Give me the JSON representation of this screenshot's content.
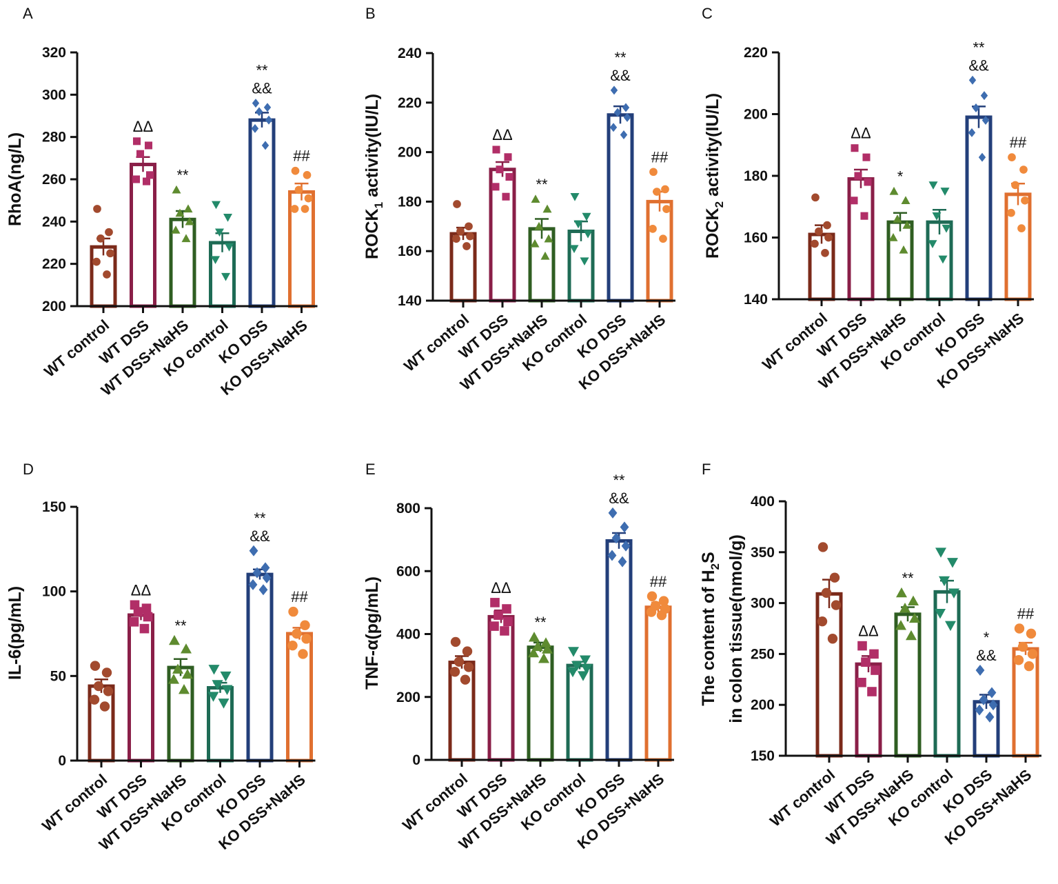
{
  "figure": {
    "categories": [
      "WT control",
      "WT DSS",
      "WT DSS+NaHS",
      "KO control",
      "KO DSS",
      "KO DSS+NaHS"
    ],
    "colors": [
      "#7B2A1A",
      "#8A1F48",
      "#2F5E22",
      "#1E6B55",
      "#233F7A",
      "#E07030"
    ],
    "point_colors": [
      "#A24A2E",
      "#B12E67",
      "#5E8B2F",
      "#238A6A",
      "#3E6DB0",
      "#F08A3C"
    ],
    "markers": [
      "circle",
      "square",
      "triangle",
      "triangle-down",
      "diamond",
      "circle"
    ]
  },
  "chart_data": [
    {
      "panel": "A",
      "type": "bar",
      "ylabel": "RhoA(ng/L)",
      "ylim": [
        200,
        320
      ],
      "yticks": [
        200,
        220,
        240,
        260,
        280,
        300,
        320
      ],
      "categories": [
        "WT control",
        "WT DSS",
        "WT DSS+NaHS",
        "KO control",
        "KO DSS",
        "KO DSS+NaHS"
      ],
      "values": [
        228,
        267,
        241,
        230,
        288,
        254
      ],
      "sem": [
        4,
        3.5,
        4,
        4.5,
        3.5,
        4
      ],
      "points": [
        [
          246,
          235,
          232,
          225,
          221,
          215
        ],
        [
          278,
          276,
          272,
          262,
          260,
          259
        ],
        [
          255,
          246,
          244,
          240,
          236,
          232
        ],
        [
          248,
          242,
          235,
          228,
          222,
          214
        ],
        [
          296,
          294,
          292,
          288,
          284,
          276
        ],
        [
          264,
          262,
          255,
          251,
          246,
          246
        ]
      ],
      "annotations": [
        "",
        "ΔΔ",
        "**",
        "",
        "**\n&&",
        "##"
      ]
    },
    {
      "panel": "B",
      "type": "bar",
      "ylabel_main": "ROCK",
      "ylabel_sub": "1",
      "ylabel_rest": " activity(IU/L)",
      "ylim": [
        140,
        240
      ],
      "yticks": [
        140,
        160,
        180,
        200,
        220,
        240
      ],
      "categories": [
        "WT control",
        "WT DSS",
        "WT DSS+NaHS",
        "KO control",
        "KO DSS",
        "KO DSS+NaHS"
      ],
      "values": [
        167,
        193,
        169,
        168,
        215,
        180
      ],
      "sem": [
        2.5,
        3,
        4,
        4,
        3.5,
        4
      ],
      "points": [
        [
          179,
          170,
          168,
          166,
          165,
          162
        ],
        [
          201,
          198,
          193,
          190,
          186,
          182
        ],
        [
          181,
          177,
          170,
          165,
          163,
          158
        ],
        [
          182,
          174,
          171,
          167,
          161,
          156
        ],
        [
          225,
          218,
          216,
          214,
          210,
          207
        ],
        [
          192,
          185,
          184,
          177,
          169,
          165
        ]
      ],
      "annotations": [
        "",
        "ΔΔ",
        "**",
        "",
        "**\n&&",
        "##"
      ]
    },
    {
      "panel": "C",
      "type": "bar",
      "ylabel_main": "ROCK",
      "ylabel_sub": "2",
      "ylabel_rest": " activity(IU/L)",
      "ylim": [
        140,
        220
      ],
      "yticks": [
        140,
        160,
        180,
        200,
        220
      ],
      "categories": [
        "WT control",
        "WT DSS",
        "WT DSS+NaHS",
        "KO control",
        "KO DSS",
        "KO DSS+NaHS"
      ],
      "values": [
        161,
        179,
        165,
        165,
        199,
        174
      ],
      "sem": [
        3,
        3,
        3,
        4,
        3.5,
        3.5
      ],
      "points": [
        [
          173,
          164,
          162,
          160,
          158,
          155
        ],
        [
          189,
          186,
          180,
          178,
          172,
          167
        ],
        [
          175,
          172,
          166,
          164,
          160,
          156
        ],
        [
          177,
          175,
          167,
          163,
          158,
          153
        ],
        [
          211,
          206,
          202,
          198,
          194,
          186
        ],
        [
          186,
          182,
          177,
          172,
          168,
          163
        ]
      ],
      "annotations": [
        "",
        "ΔΔ",
        "*",
        "",
        "**\n&&",
        "##"
      ]
    },
    {
      "panel": "D",
      "type": "bar",
      "ylabel": "IL-6(pg/mL)",
      "ylim": [
        0,
        150
      ],
      "yticks": [
        0,
        50,
        100,
        150
      ],
      "categories": [
        "WT control",
        "WT DSS",
        "WT DSS+NaHS",
        "KO control",
        "KO DSS",
        "KO DSS+NaHS"
      ],
      "values": [
        44,
        86,
        55,
        43,
        110,
        75
      ],
      "sem": [
        4,
        3,
        5,
        3,
        3,
        3.5
      ],
      "points": [
        [
          56,
          52,
          44,
          41,
          36,
          32
        ],
        [
          92,
          90,
          88,
          85,
          82,
          78
        ],
        [
          71,
          66,
          54,
          51,
          48,
          42
        ],
        [
          54,
          50,
          45,
          42,
          38,
          34
        ],
        [
          124,
          114,
          111,
          108,
          104,
          101
        ],
        [
          88,
          80,
          75,
          72,
          68,
          63
        ]
      ],
      "annotations": [
        "",
        "ΔΔ",
        "**",
        "",
        "**\n&&",
        "##"
      ]
    },
    {
      "panel": "E",
      "type": "bar",
      "ylabel": "TNF-α(pg/mL)",
      "ylim": [
        0,
        800
      ],
      "yticks": [
        0,
        200,
        400,
        600,
        800
      ],
      "categories": [
        "WT control",
        "WT DSS",
        "WT DSS+NaHS",
        "KO control",
        "KO DSS",
        "KO DSS+NaHS"
      ],
      "values": [
        310,
        455,
        358,
        300,
        696,
        485
      ],
      "sem": [
        20,
        20,
        15,
        12,
        25,
        15
      ],
      "points": [
        [
          375,
          345,
          312,
          295,
          280,
          255
        ],
        [
          500,
          480,
          460,
          440,
          425,
          410
        ],
        [
          390,
          372,
          360,
          352,
          340,
          322
        ],
        [
          345,
          318,
          300,
          290,
          280,
          268
        ],
        [
          785,
          740,
          705,
          680,
          650,
          630
        ],
        [
          520,
          505,
          490,
          480,
          470,
          460
        ]
      ],
      "annotations": [
        "",
        "ΔΔ",
        "**",
        "",
        "**\n&&",
        "##"
      ]
    },
    {
      "panel": "F",
      "type": "bar",
      "ylabel_line1": "The content of H",
      "ylabel_sub": "2",
      "ylabel_line1_end": "S",
      "ylabel_line2": "in colon tissue(nmol/g)",
      "ylim": [
        150,
        400
      ],
      "yticks": [
        150,
        200,
        250,
        300,
        350,
        400
      ],
      "categories": [
        "WT control",
        "WT DSS",
        "WT DSS+NaHS",
        "KO control",
        "KO DSS",
        "KO DSS+NaHS"
      ],
      "values": [
        309,
        240,
        289,
        311,
        203,
        255
      ],
      "sem": [
        14,
        8,
        7,
        11,
        7,
        6
      ],
      "points": [
        [
          355,
          325,
          310,
          298,
          282,
          265
        ],
        [
          258,
          250,
          242,
          234,
          222,
          213
        ],
        [
          310,
          302,
          295,
          285,
          278,
          268
        ],
        [
          350,
          340,
          322,
          310,
          290,
          278
        ],
        [
          234,
          212,
          205,
          200,
          195,
          188
        ],
        [
          275,
          270,
          257,
          250,
          244,
          238
        ]
      ],
      "annotations": [
        "",
        "ΔΔ",
        "**",
        "",
        "*\n&&",
        "##"
      ]
    }
  ]
}
